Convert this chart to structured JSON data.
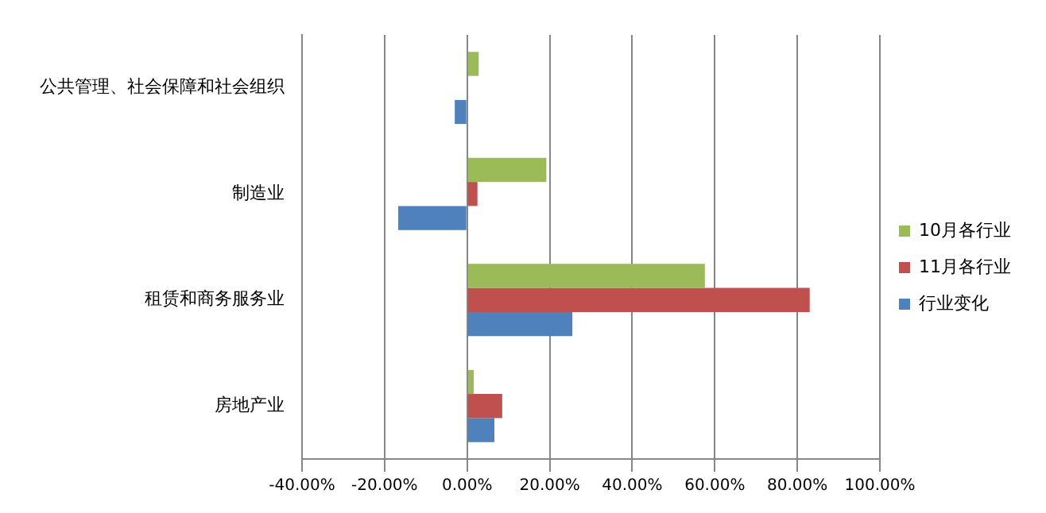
{
  "chart_data": {
    "type": "bar",
    "orientation": "horizontal",
    "categories": [
      "公共管理、社会保障和社会组织",
      "制造业",
      "租赁和商务服务业",
      "房地产业"
    ],
    "series": [
      {
        "name": "10月各行业",
        "color": "#9bbb59",
        "values": [
          2.8,
          19.2,
          57.6,
          1.6
        ]
      },
      {
        "name": "11月各行业",
        "color": "#c0504d",
        "values": [
          0,
          2.5,
          83,
          8.5
        ]
      },
      {
        "name": "行业变化",
        "color": "#4f81bd",
        "values": [
          -3,
          -16.7,
          25.5,
          6.6
        ]
      }
    ],
    "xlim": [
      -40,
      100
    ],
    "xticks": [
      {
        "value": -40,
        "label": "-40.00%"
      },
      {
        "value": -20,
        "label": "-20.00%"
      },
      {
        "value": 0,
        "label": "0.00%"
      },
      {
        "value": 20,
        "label": "20.00%"
      },
      {
        "value": 40,
        "label": "40.00%"
      },
      {
        "value": 60,
        "label": "60.00%"
      },
      {
        "value": 80,
        "label": "80.00%"
      },
      {
        "value": 100,
        "label": "100.00%"
      }
    ],
    "grid": "x",
    "legend": "right"
  }
}
